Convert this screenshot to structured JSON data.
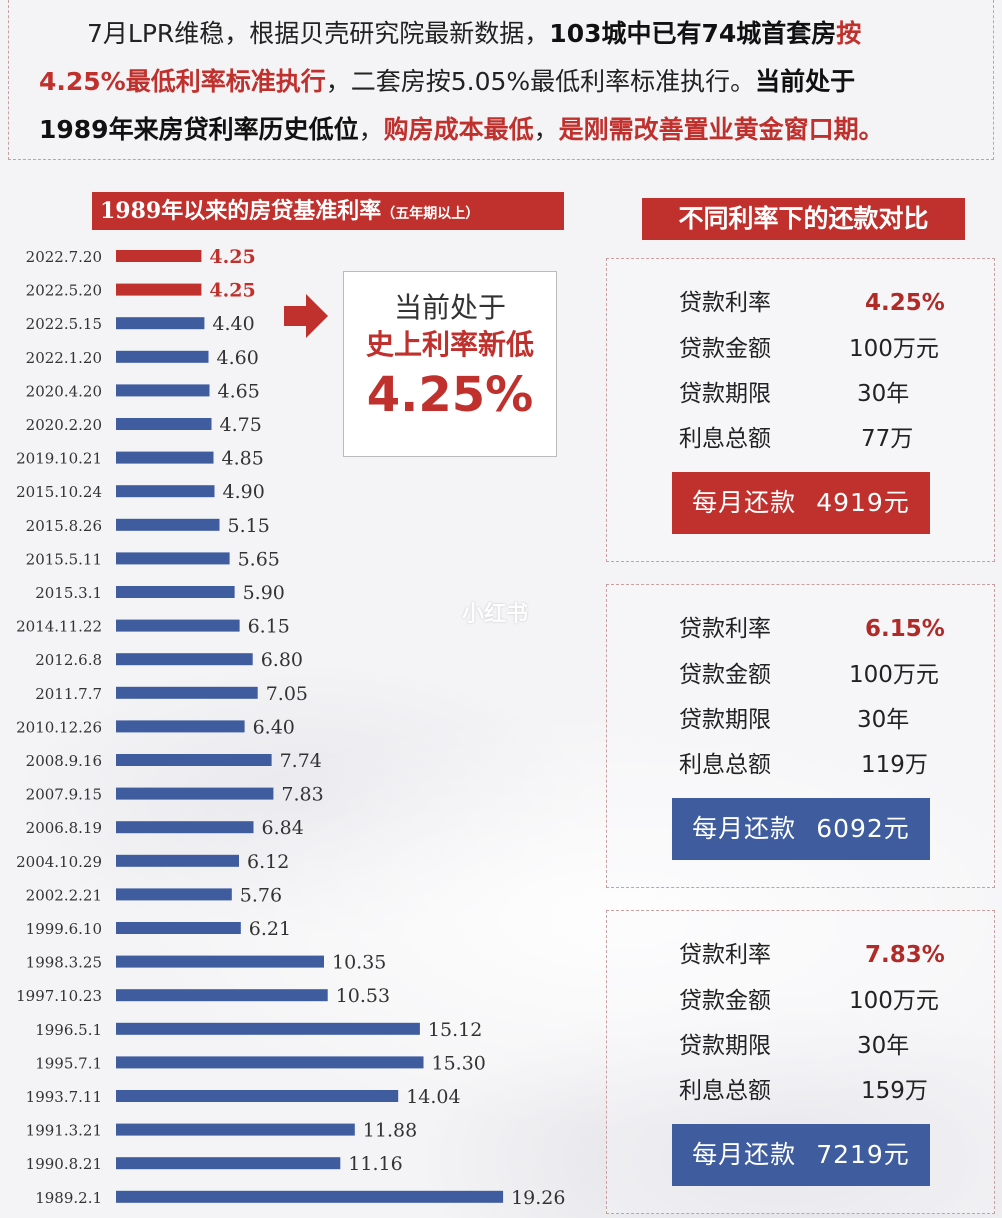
{
  "intro": {
    "p1_a": "7月LPR维稳，根据贝壳研究院最新数据，",
    "p1_b": "103城中已有74城首套房",
    "p1_c": "按",
    "p1_d": "4.25%最低利率标准执行",
    "p1_e": "，二套房按5.05%最低利率标准执行。",
    "p1_f": "当前处于",
    "p1_g": "1989年来房贷利率历史低位",
    "p1_h": "，",
    "p1_i": "购房成本最低",
    "p1_j": "，",
    "p1_k": "是刚需改善置业黄金窗口期。"
  },
  "chart_title": {
    "main": "1989年以来的房贷基准利率",
    "sub": "（五年期以上）"
  },
  "chart_data": {
    "type": "bar",
    "orientation": "horizontal",
    "categories": [
      "2022.7.20",
      "2022.5.20",
      "2022.5.15",
      "2022.1.20",
      "2020.4.20",
      "2020.2.20",
      "2019.10.21",
      "2015.10.24",
      "2015.8.26",
      "2015.5.11",
      "2015.3.1",
      "2014.11.22",
      "2012.6.8",
      "2011.7.7",
      "2010.12.26",
      "2008.9.16",
      "2007.9.15",
      "2006.8.19",
      "2004.10.29",
      "2002.2.21",
      "1999.6.10",
      "1998.3.25",
      "1997.10.23",
      "1996.5.1",
      "1995.7.1",
      "1993.7.11",
      "1991.3.21",
      "1990.8.21",
      "1989.2.1"
    ],
    "values": [
      4.25,
      4.25,
      4.4,
      4.6,
      4.65,
      4.75,
      4.85,
      4.9,
      5.15,
      5.65,
      5.9,
      6.15,
      6.8,
      7.05,
      6.4,
      7.74,
      7.83,
      6.84,
      6.12,
      5.76,
      6.21,
      10.35,
      10.53,
      15.12,
      15.3,
      14.04,
      11.88,
      11.16,
      19.26
    ],
    "labels": [
      "4.25",
      "4.25",
      "4.40",
      "4.60",
      "4.65",
      "4.75",
      "4.85",
      "4.90",
      "5.15",
      "5.65",
      "5.90",
      "6.15",
      "6.80",
      "7.05",
      "6.40",
      "7.74",
      "7.83",
      "6.84",
      "6.12",
      "5.76",
      "6.21",
      "10.35",
      "10.53",
      "15.12",
      "15.30",
      "14.04",
      "11.88",
      "11.16",
      "19.26"
    ],
    "highlight": [
      0,
      1
    ],
    "highlight_color": "#c0302d",
    "bar_color": "#3e5c9e",
    "title": "1989年以来的房贷基准利率（五年期以上）",
    "xlabel": "",
    "ylabel": "",
    "grid": false
  },
  "callout": {
    "line1": "当前处于",
    "line2": "史上利率新低",
    "line3": "4.25%"
  },
  "compare_title": "不同利率下的还款对比",
  "cards": [
    {
      "rate_label": "贷款利率",
      "rate": "4.25%",
      "amount_label": "贷款金额",
      "amount": "100万元",
      "term_label": "贷款期限",
      "term": "30年",
      "interest_label": "利息总额",
      "interest": "77万",
      "pay_label": "每月还款",
      "pay": "4919元",
      "pay_color": "#c0302d"
    },
    {
      "rate_label": "贷款利率",
      "rate": "6.15%",
      "amount_label": "贷款金额",
      "amount": "100万元",
      "term_label": "贷款期限",
      "term": "30年",
      "interest_label": "利息总额",
      "interest": "119万",
      "pay_label": "每月还款",
      "pay": "6092元",
      "pay_color": "#3e5c9e"
    },
    {
      "rate_label": "贷款利率",
      "rate": "7.83%",
      "amount_label": "贷款金额",
      "amount": "100万元",
      "term_label": "贷款期限",
      "term": "30年",
      "interest_label": "利息总额",
      "interest": "159万",
      "pay_label": "每月还款",
      "pay": "7219元",
      "pay_color": "#3e5c9e"
    }
  ],
  "colors": {
    "accent_red": "#c0302d",
    "bar_blue": "#3e5c9e"
  },
  "watermark": "小红书"
}
